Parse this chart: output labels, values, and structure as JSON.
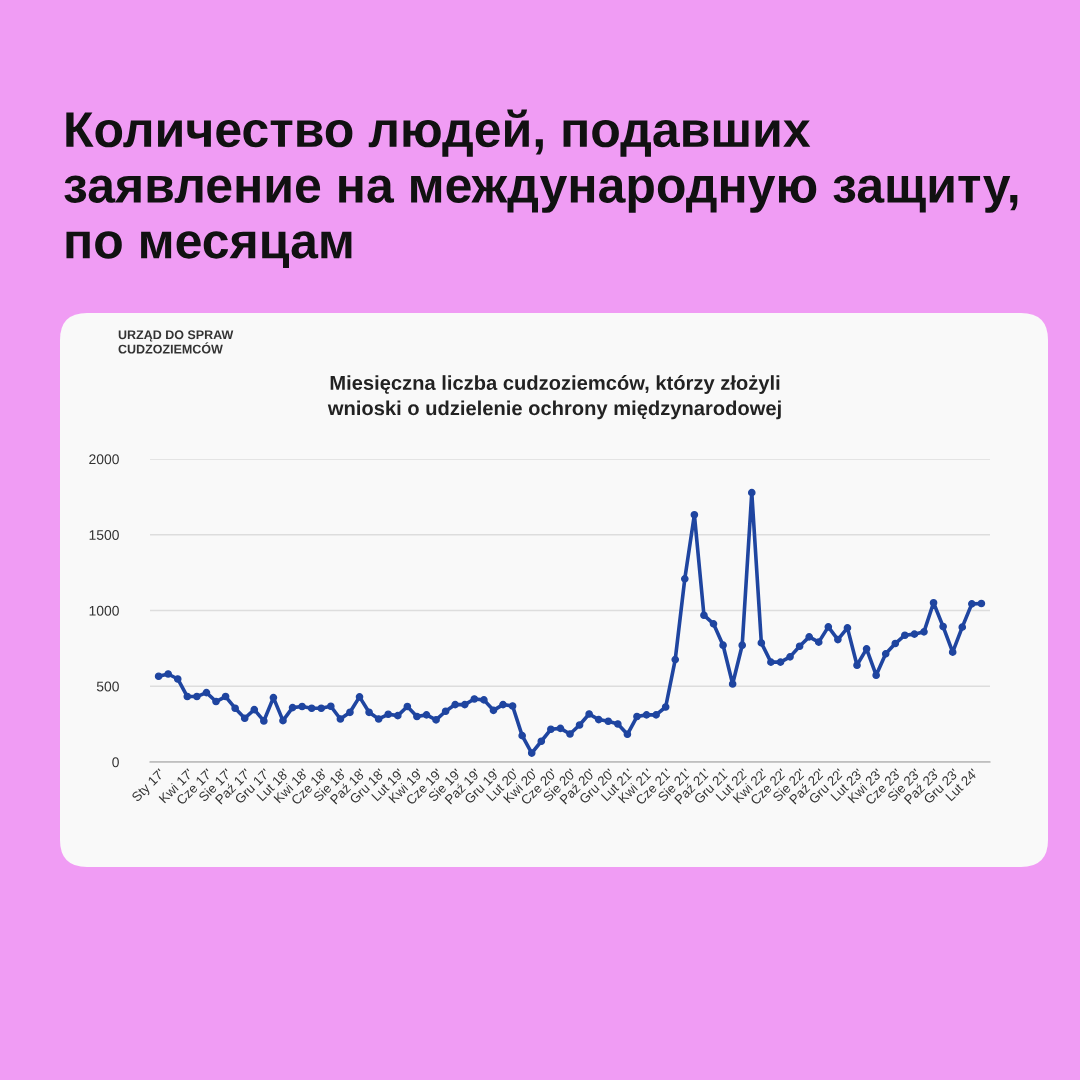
{
  "chart_data": {
    "type": "line",
    "title": "Количество людей, подавших\nзаявление на международную защиту,\nпо месяцам",
    "subtitle": "Miesięczna liczba cudzoziemców, którzy złożyli\nwnioski o udzielenie ochrony międzynarodowej",
    "annotations": [
      "URZĄD DO SPRAW\nCUDZOZIEMCÓW"
    ],
    "categories": [
      "Sty 17'",
      null,
      null,
      "Kwi 17'",
      null,
      "Cze 17'",
      null,
      "Sie 17'",
      null,
      "Paź 17'",
      null,
      "Gru 17'",
      null,
      "Lut 18'",
      null,
      "Kwi 18'",
      null,
      "Cze 18'",
      null,
      "Sie 18'",
      null,
      "Paź 18'",
      null,
      "Gru 18'",
      null,
      "Lut 19'",
      null,
      "Kwi 19'",
      null,
      "Cze 19'",
      null,
      "Sie 19'",
      null,
      "Paź 19'",
      null,
      "Gru 19'",
      null,
      "Lut 20'",
      null,
      "Kwi 20'",
      null,
      "Cze 20'",
      null,
      "Sie 20'",
      null,
      "Paź 20'",
      null,
      "Gru 20'",
      null,
      "Lut 21'",
      null,
      "Kwi 21'",
      null,
      "Cze 21'",
      null,
      "Sie 21'",
      null,
      "Paź 21'",
      null,
      "Gru 21'",
      null,
      "Lut 22'",
      null,
      "Kwi 22'",
      null,
      "Cze 22'",
      null,
      "Sie 22'",
      null,
      "Paź 22'",
      null,
      "Gru 22'",
      null,
      "Lut 23'",
      null,
      "Kwi 23'",
      null,
      "Cze 23'",
      null,
      "Sie 23'",
      null,
      "Paź 23'",
      null,
      "Gru 23'",
      null,
      "Lut 24'",
      null
    ],
    "series": [
      {
        "color": "#1f45a0",
        "values": [
          566,
          581,
          548,
          432,
          432,
          458,
          399,
          432,
          355,
          289,
          346,
          271,
          425,
          273,
          359,
          366,
          355,
          355,
          368,
          284,
          328,
          430,
          328,
          284,
          315,
          306,
          366,
          300,
          311,
          278,
          335,
          379,
          379,
          416,
          410,
          341,
          379,
          370,
          174,
          59,
          137,
          216,
          222,
          185,
          244,
          317,
          280,
          269,
          251,
          183,
          300,
          311,
          311,
          363,
          676,
          1209,
          1632,
          969,
          912,
          771,
          515,
          771,
          1778,
          786,
          659,
          659,
          694,
          764,
          826,
          791,
          892,
          808,
          885,
          639,
          747,
          573,
          714,
          782,
          837,
          844,
          859,
          1051,
          894,
          725,
          890,
          1044,
          1046
        ]
      }
    ],
    "ylim": [
      0,
      2000
    ],
    "yticks": [
      0,
      500,
      1000,
      1500,
      2000
    ],
    "grid": "y",
    "legend": false,
    "marker": "circle",
    "line_style": "solid"
  }
}
